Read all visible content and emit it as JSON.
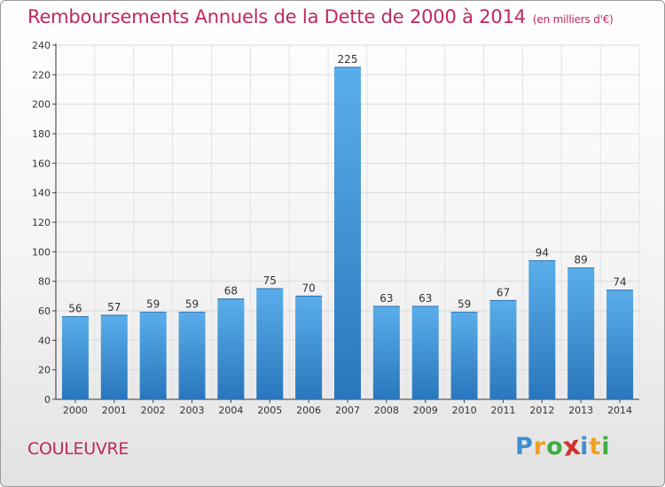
{
  "chart_data": {
    "type": "bar",
    "title": "Remboursements Annuels de la Dette de 2000 à 2014",
    "subtitle": "(en milliers d'€)",
    "categories": [
      "2000",
      "2001",
      "2002",
      "2003",
      "2004",
      "2005",
      "2006",
      "2007",
      "2008",
      "2009",
      "2010",
      "2011",
      "2012",
      "2013",
      "2014"
    ],
    "values": [
      56,
      57,
      59,
      59,
      68,
      75,
      70,
      225,
      63,
      63,
      59,
      67,
      94,
      89,
      74
    ],
    "ylim": [
      0,
      240
    ],
    "yticks": [
      0,
      20,
      40,
      60,
      80,
      100,
      120,
      140,
      160,
      180,
      200,
      220,
      240
    ],
    "xlabel": "",
    "ylabel": "",
    "grid": true,
    "bar_color": "#3d8fd6"
  },
  "commune": "COULEUVRE",
  "logo": {
    "text": "Proxiti",
    "letters": [
      "P",
      "r",
      "o",
      "x",
      "i",
      "t",
      "i"
    ],
    "colors": [
      "#3f8fd0",
      "#f0a020",
      "#3fae3f",
      "#d0342c",
      "#3f8fd0",
      "#f0a020",
      "#3fae3f"
    ]
  }
}
